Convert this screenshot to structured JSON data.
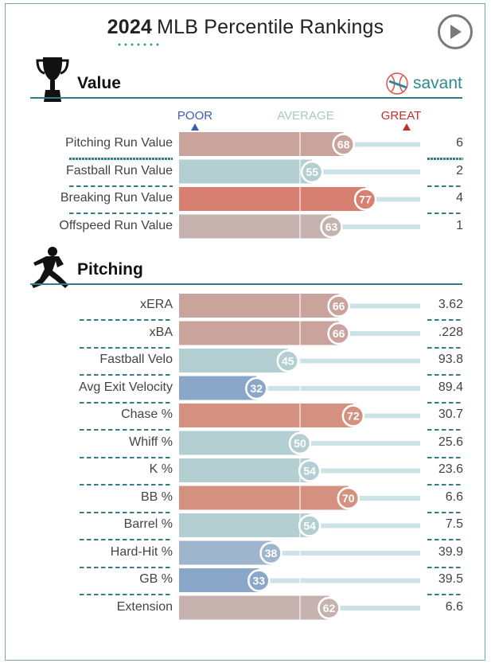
{
  "header": {
    "year": "2024",
    "title": "MLB Percentile Rankings",
    "play_icon": "play-icon"
  },
  "brand": {
    "name": "savant",
    "icon": "baseball-icon",
    "color": "#2d8a91"
  },
  "scale": {
    "poor": "POOR",
    "average": "AVERAGE",
    "great": "GREAT"
  },
  "colors": {
    "poor": "#3b5ea8",
    "average": "#9cc0c3",
    "great": "#c0302c",
    "track": "#cce3e5",
    "section_line": "#2f7f84"
  },
  "chart_data": {
    "type": "bar",
    "xlim": [
      0,
      100
    ],
    "sections": [
      {
        "title": "Value",
        "icon": "trophy-icon",
        "metrics": [
          {
            "label": "Pitching Run Value",
            "percentile": 68,
            "value": "6",
            "color": "#c9a39c"
          },
          {
            "label": "Fastball Run Value",
            "percentile": 55,
            "value": "2",
            "color": "#b4cfd1"
          },
          {
            "label": "Breaking Run Value",
            "percentile": 77,
            "value": "4",
            "color": "#d77f71"
          },
          {
            "label": "Offspeed Run Value",
            "percentile": 63,
            "value": "1",
            "color": "#c6b2ae"
          }
        ]
      },
      {
        "title": "Pitching",
        "icon": "pitcher-icon",
        "metrics": [
          {
            "label": "xERA",
            "percentile": 66,
            "value": "3.62",
            "color": "#c9a39c"
          },
          {
            "label": "xBA",
            "percentile": 66,
            "value": ".228",
            "color": "#c9a39c"
          },
          {
            "label": "Fastball Velo",
            "percentile": 45,
            "value": "93.8",
            "color": "#b4cfd1"
          },
          {
            "label": "Avg Exit Velocity",
            "percentile": 32,
            "value": "89.4",
            "color": "#8aa7c9"
          },
          {
            "label": "Chase %",
            "percentile": 72,
            "value": "30.7",
            "color": "#d4917f"
          },
          {
            "label": "Whiff %",
            "percentile": 50,
            "value": "25.6",
            "color": "#b4cfd1"
          },
          {
            "label": "K %",
            "percentile": 54,
            "value": "23.6",
            "color": "#b4cfd1"
          },
          {
            "label": "BB %",
            "percentile": 70,
            "value": "6.6",
            "color": "#d4917f"
          },
          {
            "label": "Barrel %",
            "percentile": 54,
            "value": "7.5",
            "color": "#b4cfd1"
          },
          {
            "label": "Hard-Hit %",
            "percentile": 38,
            "value": "39.9",
            "color": "#9fb5cd"
          },
          {
            "label": "GB %",
            "percentile": 33,
            "value": "39.5",
            "color": "#8aa7c9"
          },
          {
            "label": "Extension",
            "percentile": 62,
            "value": "6.6",
            "color": "#c6b2ae"
          }
        ]
      }
    ]
  }
}
